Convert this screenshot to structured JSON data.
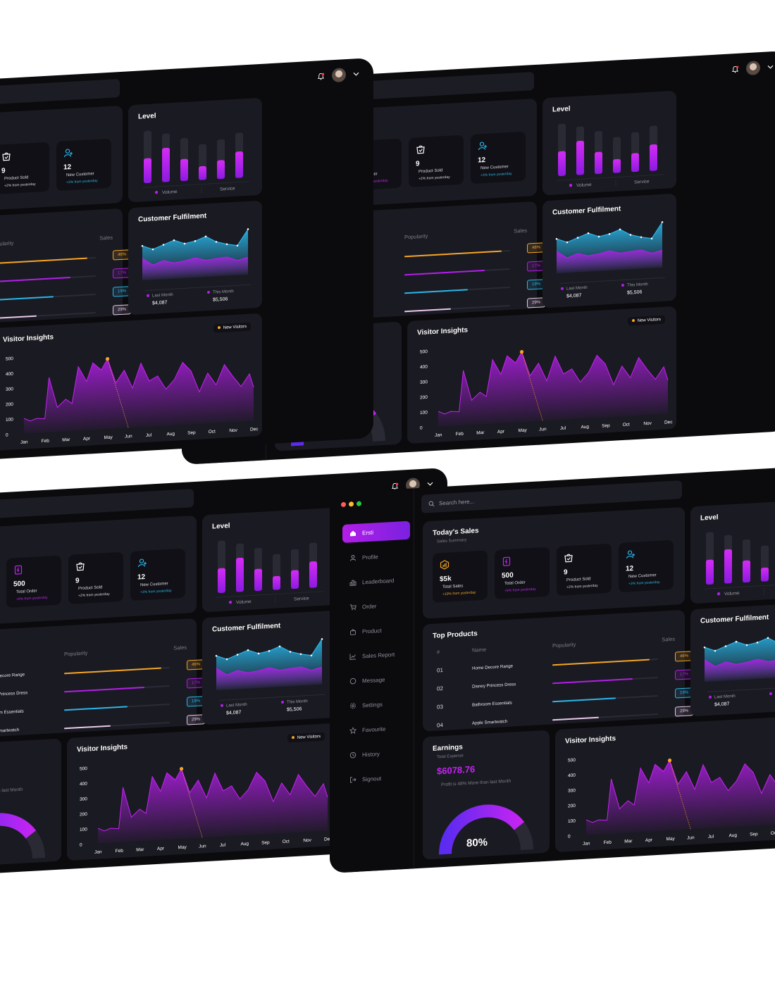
{
  "window_controls": [
    {
      "name": "close",
      "color": "#ff5f57"
    },
    {
      "name": "minimize",
      "color": "#febc2e"
    },
    {
      "name": "maximize",
      "color": "#28c840"
    }
  ],
  "sidebar": {
    "items": [
      {
        "label": "Ersti",
        "icon": "home-icon",
        "active": true
      },
      {
        "label": "Profile",
        "icon": "user-icon",
        "active": false
      },
      {
        "label": "Leaderboard",
        "icon": "leaderboard-icon",
        "active": false
      },
      {
        "label": "Order",
        "icon": "cart-icon",
        "active": false
      },
      {
        "label": "Product",
        "icon": "bag-icon",
        "active": false
      },
      {
        "label": "Sales Report",
        "icon": "chart-line-icon",
        "active": false
      },
      {
        "label": "Message",
        "icon": "message-icon",
        "active": false
      },
      {
        "label": "Settings",
        "icon": "gear-icon",
        "active": false
      },
      {
        "label": "Favourite",
        "icon": "star-icon",
        "active": false
      },
      {
        "label": "History",
        "icon": "history-icon",
        "active": false
      },
      {
        "label": "Signout",
        "icon": "signout-icon",
        "active": false
      }
    ]
  },
  "header": {
    "search_placeholder": "Search here...",
    "notification_icon": "bell-icon",
    "chevron_icon": "chevron-down-icon"
  },
  "todays_sales": {
    "title": "Today's Sales",
    "subtitle": "Sales Summary",
    "stats": [
      {
        "value": "$5k",
        "label": "Total Sales",
        "change": "+10% from yesterday",
        "icon": "sales-icon",
        "color": "#f5a524"
      },
      {
        "value": "500",
        "label": "Total Order",
        "change": "+8% from yesterday",
        "icon": "order-icon",
        "color": "#c424f2"
      },
      {
        "value": "9",
        "label": "Product Sold",
        "change": "+2% from yesterday",
        "icon": "product-sold-icon",
        "color": "#ffffff"
      },
      {
        "value": "12",
        "label": "New Customer",
        "change": "+3% from yesterday",
        "icon": "new-customer-icon",
        "color": "#2ab6e8"
      }
    ]
  },
  "level": {
    "title": "Level",
    "legend": [
      "Volume",
      "Service"
    ],
    "chart_data": {
      "type": "bar",
      "series": [
        {
          "name": "Volume",
          "values": [
            0.45,
            0.62,
            0.4,
            0.25,
            0.34,
            0.48
          ]
        },
        {
          "name": "Service",
          "values": [
            0.95,
            0.88,
            0.78,
            0.65,
            0.72,
            0.82
          ]
        }
      ]
    }
  },
  "top_products": {
    "title": "Top Products",
    "columns": [
      "#",
      "Name",
      "Popularity",
      "Sales"
    ],
    "rows": [
      {
        "num": "01",
        "name": "Home Decore Range",
        "popularity": 0.46,
        "sales": "46%",
        "color": "#f5a524"
      },
      {
        "num": "02",
        "name": "Disney Princess Dress",
        "popularity": 0.38,
        "sales": "17%",
        "color": "#b21ee8"
      },
      {
        "num": "03",
        "name": "Bathroom Essentials",
        "popularity": 0.3,
        "sales": "19%",
        "color": "#2ab6e8"
      },
      {
        "num": "04",
        "name": "Apple Smartwatch",
        "popularity": 0.22,
        "sales": "29%",
        "color": "#e6c8e8"
      }
    ]
  },
  "customer_fulfilment": {
    "title": "Customer Fulfilment",
    "last_month_label": "Last Month",
    "last_month_value": "$4,087",
    "this_month_label": "This Month",
    "this_month_value": "$5,506",
    "chart_data": {
      "type": "area",
      "series": [
        {
          "name": "Last Month",
          "values": [
            0.45,
            0.3,
            0.38,
            0.32,
            0.35,
            0.4,
            0.34,
            0.36,
            0.38,
            0.3,
            0.35
          ]
        },
        {
          "name": "This Month",
          "values": [
            0.7,
            0.62,
            0.7,
            0.78,
            0.7,
            0.74,
            0.82,
            0.7,
            0.64,
            0.6,
            0.92
          ]
        }
      ]
    }
  },
  "earnings": {
    "title": "Earnings",
    "subtitle": "Total Expense",
    "amount": "$6078.76",
    "note": "Profit is 48% More than last Month",
    "percent_label": "80%",
    "percent": 0.8
  },
  "visitor_insights": {
    "title": "Visitor Insights",
    "legend": "New Visitors",
    "chart_data": {
      "type": "area",
      "categories": [
        "Jan",
        "Feb",
        "Mar",
        "Apr",
        "May",
        "Jun",
        "Jul",
        "Aug",
        "Sep",
        "Oct",
        "Nov",
        "Dec"
      ],
      "yticks": [
        0,
        100,
        200,
        300,
        400,
        500
      ],
      "ylim": [
        0,
        500
      ],
      "series": [
        {
          "name": "New Visitors",
          "points": [
            [
              0,
              100
            ],
            [
              0.3,
              80
            ],
            [
              0.6,
              95
            ],
            [
              1,
              90
            ],
            [
              1.2,
              360
            ],
            [
              1.6,
              160
            ],
            [
              2,
              210
            ],
            [
              2.3,
              180
            ],
            [
              2.6,
              420
            ],
            [
              3,
              320
            ],
            [
              3.3,
              440
            ],
            [
              3.7,
              390
            ],
            [
              4,
              460
            ],
            [
              4.4,
              300
            ],
            [
              4.8,
              380
            ],
            [
              5.2,
              260
            ],
            [
              5.6,
              420
            ],
            [
              6,
              300
            ],
            [
              6.4,
              330
            ],
            [
              6.8,
              240
            ],
            [
              7.2,
              300
            ],
            [
              7.6,
              410
            ],
            [
              8,
              350
            ],
            [
              8.4,
              210
            ],
            [
              8.8,
              330
            ],
            [
              9.2,
              250
            ],
            [
              9.6,
              380
            ],
            [
              10,
              300
            ],
            [
              10.4,
              230
            ],
            [
              10.8,
              310
            ],
            [
              11,
              220
            ]
          ]
        }
      ],
      "highlight": {
        "x": 4,
        "y": 460
      }
    }
  }
}
